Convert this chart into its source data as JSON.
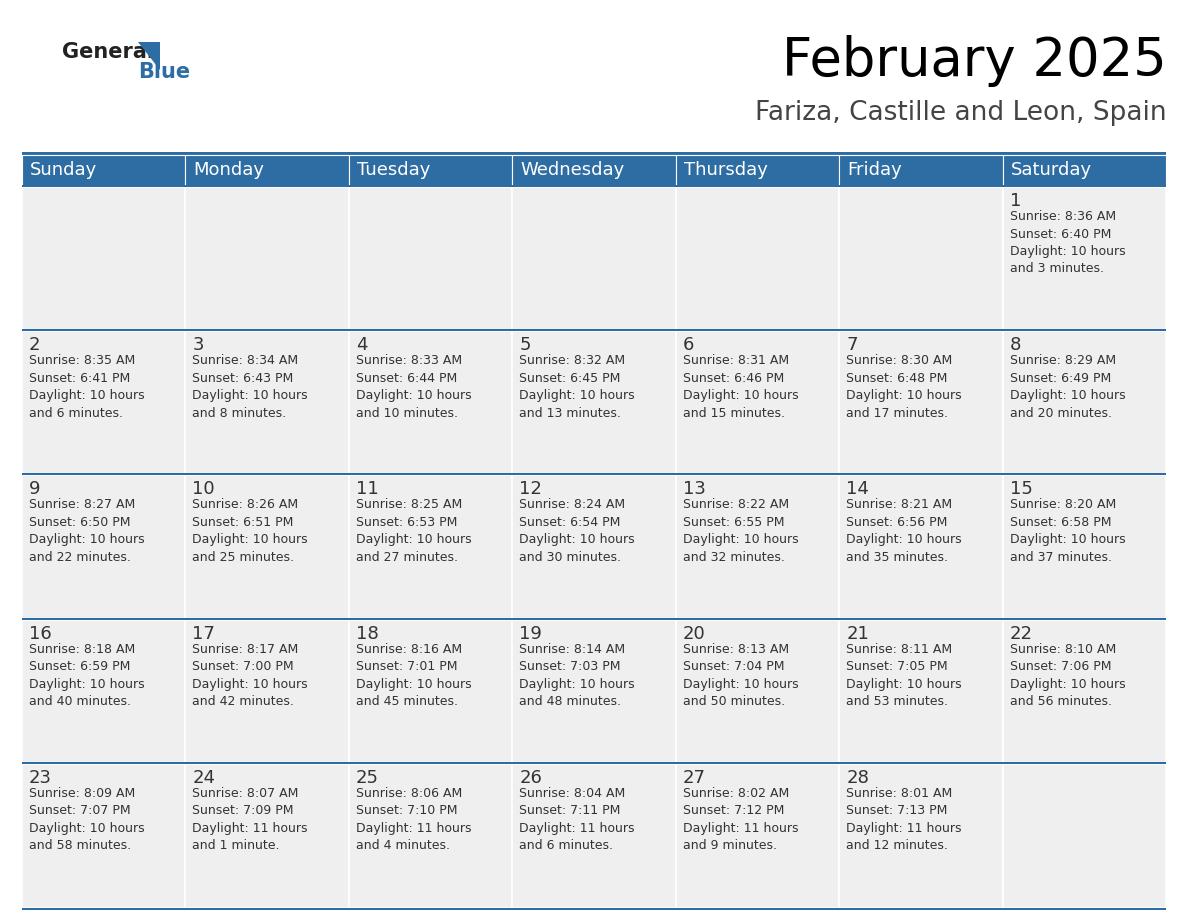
{
  "title": "February 2025",
  "subtitle": "Fariza, Castille and Leon, Spain",
  "header_color": "#2E6DA4",
  "header_text_color": "#FFFFFF",
  "cell_bg_color": "#EFEFEF",
  "cell_bg_color_empty": "#EFEFEF",
  "line_color": "#2E6DA4",
  "text_color": "#333333",
  "days_of_week": [
    "Sunday",
    "Monday",
    "Tuesday",
    "Wednesday",
    "Thursday",
    "Friday",
    "Saturday"
  ],
  "title_fontsize": 38,
  "subtitle_fontsize": 19,
  "header_fontsize": 13,
  "day_num_fontsize": 13,
  "cell_fontsize": 9,
  "logo_general_color": "#222222",
  "logo_blue_color": "#2E6DA4",
  "calendar_data": [
    [
      null,
      null,
      null,
      null,
      null,
      null,
      {
        "day": 1,
        "sunrise": "8:36 AM",
        "sunset": "6:40 PM",
        "daylight_hours": 10,
        "daylight_rest": "3 minutes."
      }
    ],
    [
      {
        "day": 2,
        "sunrise": "8:35 AM",
        "sunset": "6:41 PM",
        "daylight_hours": 10,
        "daylight_rest": "6 minutes."
      },
      {
        "day": 3,
        "sunrise": "8:34 AM",
        "sunset": "6:43 PM",
        "daylight_hours": 10,
        "daylight_rest": "8 minutes."
      },
      {
        "day": 4,
        "sunrise": "8:33 AM",
        "sunset": "6:44 PM",
        "daylight_hours": 10,
        "daylight_rest": "10 minutes."
      },
      {
        "day": 5,
        "sunrise": "8:32 AM",
        "sunset": "6:45 PM",
        "daylight_hours": 10,
        "daylight_rest": "13 minutes."
      },
      {
        "day": 6,
        "sunrise": "8:31 AM",
        "sunset": "6:46 PM",
        "daylight_hours": 10,
        "daylight_rest": "15 minutes."
      },
      {
        "day": 7,
        "sunrise": "8:30 AM",
        "sunset": "6:48 PM",
        "daylight_hours": 10,
        "daylight_rest": "17 minutes."
      },
      {
        "day": 8,
        "sunrise": "8:29 AM",
        "sunset": "6:49 PM",
        "daylight_hours": 10,
        "daylight_rest": "20 minutes."
      }
    ],
    [
      {
        "day": 9,
        "sunrise": "8:27 AM",
        "sunset": "6:50 PM",
        "daylight_hours": 10,
        "daylight_rest": "22 minutes."
      },
      {
        "day": 10,
        "sunrise": "8:26 AM",
        "sunset": "6:51 PM",
        "daylight_hours": 10,
        "daylight_rest": "25 minutes."
      },
      {
        "day": 11,
        "sunrise": "8:25 AM",
        "sunset": "6:53 PM",
        "daylight_hours": 10,
        "daylight_rest": "27 minutes."
      },
      {
        "day": 12,
        "sunrise": "8:24 AM",
        "sunset": "6:54 PM",
        "daylight_hours": 10,
        "daylight_rest": "30 minutes."
      },
      {
        "day": 13,
        "sunrise": "8:22 AM",
        "sunset": "6:55 PM",
        "daylight_hours": 10,
        "daylight_rest": "32 minutes."
      },
      {
        "day": 14,
        "sunrise": "8:21 AM",
        "sunset": "6:56 PM",
        "daylight_hours": 10,
        "daylight_rest": "35 minutes."
      },
      {
        "day": 15,
        "sunrise": "8:20 AM",
        "sunset": "6:58 PM",
        "daylight_hours": 10,
        "daylight_rest": "37 minutes."
      }
    ],
    [
      {
        "day": 16,
        "sunrise": "8:18 AM",
        "sunset": "6:59 PM",
        "daylight_hours": 10,
        "daylight_rest": "40 minutes."
      },
      {
        "day": 17,
        "sunrise": "8:17 AM",
        "sunset": "7:00 PM",
        "daylight_hours": 10,
        "daylight_rest": "42 minutes."
      },
      {
        "day": 18,
        "sunrise": "8:16 AM",
        "sunset": "7:01 PM",
        "daylight_hours": 10,
        "daylight_rest": "45 minutes."
      },
      {
        "day": 19,
        "sunrise": "8:14 AM",
        "sunset": "7:03 PM",
        "daylight_hours": 10,
        "daylight_rest": "48 minutes."
      },
      {
        "day": 20,
        "sunrise": "8:13 AM",
        "sunset": "7:04 PM",
        "daylight_hours": 10,
        "daylight_rest": "50 minutes."
      },
      {
        "day": 21,
        "sunrise": "8:11 AM",
        "sunset": "7:05 PM",
        "daylight_hours": 10,
        "daylight_rest": "53 minutes."
      },
      {
        "day": 22,
        "sunrise": "8:10 AM",
        "sunset": "7:06 PM",
        "daylight_hours": 10,
        "daylight_rest": "56 minutes."
      }
    ],
    [
      {
        "day": 23,
        "sunrise": "8:09 AM",
        "sunset": "7:07 PM",
        "daylight_hours": 10,
        "daylight_rest": "58 minutes."
      },
      {
        "day": 24,
        "sunrise": "8:07 AM",
        "sunset": "7:09 PM",
        "daylight_hours": 11,
        "daylight_rest": "1 minute."
      },
      {
        "day": 25,
        "sunrise": "8:06 AM",
        "sunset": "7:10 PM",
        "daylight_hours": 11,
        "daylight_rest": "4 minutes."
      },
      {
        "day": 26,
        "sunrise": "8:04 AM",
        "sunset": "7:11 PM",
        "daylight_hours": 11,
        "daylight_rest": "6 minutes."
      },
      {
        "day": 27,
        "sunrise": "8:02 AM",
        "sunset": "7:12 PM",
        "daylight_hours": 11,
        "daylight_rest": "9 minutes."
      },
      {
        "day": 28,
        "sunrise": "8:01 AM",
        "sunset": "7:13 PM",
        "daylight_hours": 11,
        "daylight_rest": "12 minutes."
      },
      null
    ]
  ]
}
